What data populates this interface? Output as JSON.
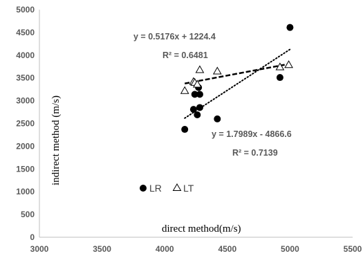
{
  "chart_data": {
    "type": "scatter",
    "title": "",
    "xlabel": "direct method(m/s)",
    "ylabel": "indirect  method (m/s)",
    "xlim": [
      3000,
      5500
    ],
    "ylim": [
      0,
      5000
    ],
    "x_ticks": [
      "3000",
      "3500",
      "4000",
      "4500",
      "5000",
      "5500"
    ],
    "y_ticks": [
      "0",
      "500",
      "1000",
      "1500",
      "2000",
      "2500",
      "3000",
      "3500",
      "4000",
      "4500",
      "5000"
    ],
    "x_tick_values": [
      3000,
      3500,
      4000,
      4500,
      5000,
      5500
    ],
    "y_tick_values": [
      0,
      500,
      1000,
      1500,
      2000,
      2500,
      3000,
      3500,
      4000,
      4500,
      5000
    ],
    "grid": false,
    "legend_position": "lower-left",
    "series": [
      {
        "name": "LR",
        "marker": "filled-circle",
        "color": "#000000",
        "points": [
          [
            4160,
            2370
          ],
          [
            4230,
            2810
          ],
          [
            4240,
            3140
          ],
          [
            4260,
            2690
          ],
          [
            4270,
            3290
          ],
          [
            4280,
            3140
          ],
          [
            4280,
            2850
          ],
          [
            4420,
            2600
          ],
          [
            4920,
            3510
          ],
          [
            5000,
            4610
          ]
        ],
        "trendline": {
          "style": "dotted",
          "slope": 1.7989,
          "intercept": -4866.6,
          "x_range": [
            4160,
            5000
          ],
          "equation": "y = 1.7989x - 4866.6",
          "r_squared": "R² = 0.7139"
        }
      },
      {
        "name": "LT",
        "marker": "open-triangle",
        "color": "#000000",
        "points": [
          [
            4160,
            3220
          ],
          [
            4230,
            3420
          ],
          [
            4240,
            3400
          ],
          [
            4260,
            3360
          ],
          [
            4280,
            3680
          ],
          [
            4420,
            3650
          ],
          [
            4920,
            3740
          ],
          [
            4990,
            3790
          ]
        ],
        "trendline": {
          "style": "dashed",
          "slope": 0.5176,
          "intercept": 1224.4,
          "x_range": [
            4160,
            5000
          ],
          "equation": "y = 0.5176x + 1224.4",
          "r_squared": "R² = 0.6481"
        }
      }
    ]
  }
}
